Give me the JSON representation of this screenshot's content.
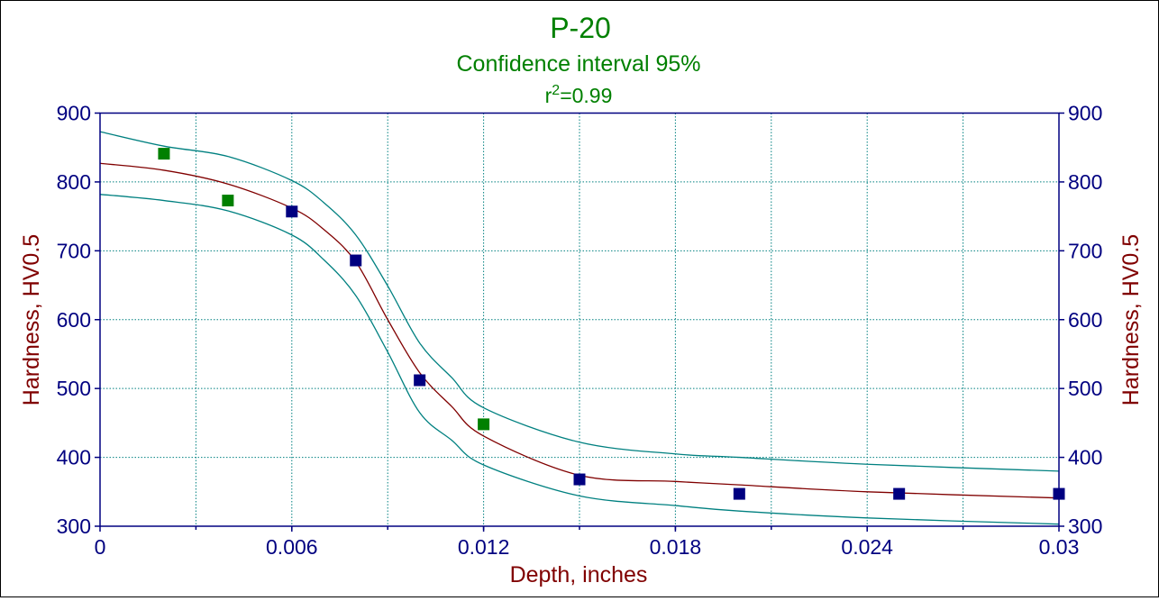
{
  "chart_data": {
    "type": "scatter",
    "title": "P-20",
    "subtitle": "Confidence interval 95%",
    "r2_label": "r",
    "r2_sup": "2",
    "r2_value": "=0.99",
    "xlabel": "Depth, inches",
    "ylabel": "Hardness, HV0.5",
    "ylabel_right": "Hardness, HV0.5",
    "xlim": [
      0,
      0.03
    ],
    "ylim": [
      300,
      900
    ],
    "x_ticks": [
      "0",
      "0.006",
      "0.012",
      "0.018",
      "0.024",
      "0.03"
    ],
    "y_ticks": [
      "300",
      "400",
      "500",
      "600",
      "700",
      "800",
      "900"
    ],
    "grid": true,
    "legend": "none",
    "points": [
      {
        "x": 0.002,
        "y": 841,
        "color": "#008000"
      },
      {
        "x": 0.004,
        "y": 773,
        "color": "#008000"
      },
      {
        "x": 0.006,
        "y": 757,
        "color": "#000080"
      },
      {
        "x": 0.008,
        "y": 686,
        "color": "#000080"
      },
      {
        "x": 0.01,
        "y": 512,
        "color": "#000080"
      },
      {
        "x": 0.012,
        "y": 448,
        "color": "#008000"
      },
      {
        "x": 0.015,
        "y": 368,
        "color": "#000080"
      },
      {
        "x": 0.02,
        "y": 347,
        "color": "#000080"
      },
      {
        "x": 0.025,
        "y": 347,
        "color": "#000080"
      },
      {
        "x": 0.03,
        "y": 347,
        "color": "#000080"
      }
    ],
    "curve_x": [
      0,
      0.002,
      0.004,
      0.006,
      0.007,
      0.008,
      0.009,
      0.01,
      0.011,
      0.012,
      0.015,
      0.018,
      0.02,
      0.024,
      0.03
    ],
    "series": [
      {
        "role": "fit",
        "color": "#800000",
        "values": [
          827,
          817,
          797,
          762,
          731,
          684,
          600,
          523,
          474,
          431,
          374,
          365,
          360,
          350,
          341
        ]
      },
      {
        "role": "upper",
        "color": "#008080",
        "values": [
          873,
          852,
          837,
          802,
          770,
          723,
          649,
          566,
          516,
          472,
          422,
          405,
          400,
          390,
          380
        ]
      },
      {
        "role": "lower",
        "color": "#008080",
        "values": [
          782,
          773,
          758,
          723,
          687,
          635,
          553,
          465,
          425,
          389,
          344,
          330,
          322,
          312,
          303
        ]
      }
    ],
    "colors": {
      "title": "#008000",
      "axis": "#000080",
      "axis_label": "#800000",
      "grid": "#008080"
    }
  }
}
